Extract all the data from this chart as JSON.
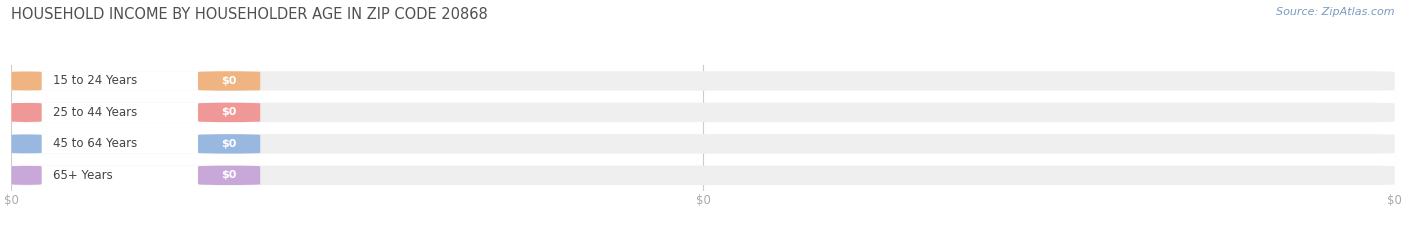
{
  "title": "HOUSEHOLD INCOME BY HOUSEHOLDER AGE IN ZIP CODE 20868",
  "source_text": "Source: ZipAtlas.com",
  "categories": [
    "15 to 24 Years",
    "25 to 44 Years",
    "45 to 64 Years",
    "65+ Years"
  ],
  "values": [
    0,
    0,
    0,
    0
  ],
  "bar_colors": [
    "#f0b482",
    "#f09898",
    "#98b8e0",
    "#c8a8d8"
  ],
  "tick_label_color": "#aaaaaa",
  "title_color": "#505050",
  "source_color": "#7a9abf",
  "background_color": "#ffffff",
  "bar_bg_color": "#efefef",
  "label_area_color": "#ffffff",
  "figsize": [
    14.06,
    2.33
  ],
  "dpi": 100
}
